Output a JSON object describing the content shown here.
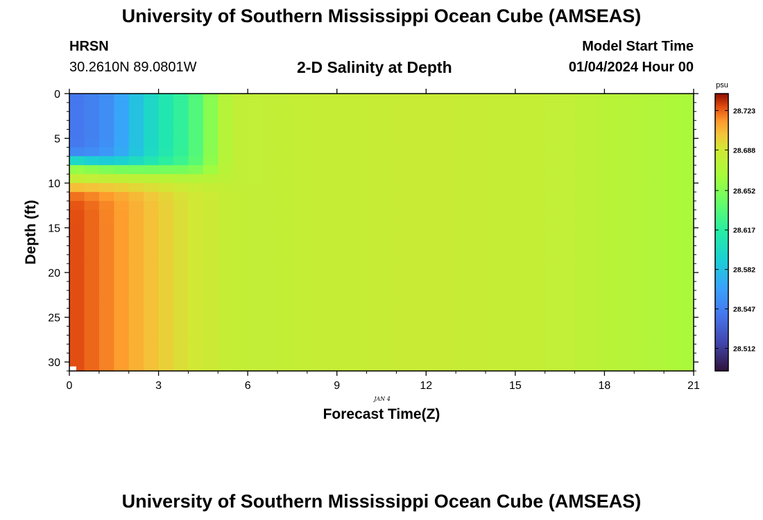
{
  "header": {
    "title": "University of Southern Mississippi Ocean Cube (AMSEAS)",
    "station": "HRSN",
    "coords": "30.2610N  89.0801W",
    "subtitle": "2-D Salinity at Depth",
    "model_start_label": "Model Start Time",
    "model_start_value": "01/04/2024 Hour 00"
  },
  "footer": {
    "title": "University of Southern Mississippi Ocean Cube (AMSEAS)"
  },
  "chart_data": {
    "type": "heatmap",
    "title": "2-D Salinity at Depth",
    "xlabel": "Forecast Time(Z)",
    "ylabel": "Depth (ft)",
    "date_label": "JAN 4",
    "xlim": [
      0,
      21
    ],
    "ylim": [
      31,
      0
    ],
    "xticks": [
      0,
      3,
      6,
      9,
      12,
      15,
      18,
      21
    ],
    "yticks": [
      0,
      5,
      10,
      15,
      20,
      25,
      30
    ],
    "x_columns_hours": [
      0.25,
      0.75,
      1.25,
      1.75,
      2.25,
      2.75,
      3.25,
      3.75,
      4.25,
      4.75,
      5.25,
      5.75,
      6.25,
      6.75,
      7.25,
      7.75,
      8.5,
      9.5,
      10.5,
      11.5,
      12.5,
      13.5,
      14.5,
      15.5,
      16.5,
      17.5,
      18.25,
      18.75,
      19.25,
      19.75,
      20.25,
      20.75
    ],
    "depth_rows_ft": [
      0.5,
      1.5,
      2.5,
      3.5,
      4.5,
      5.5,
      6.5,
      7.5,
      8.5,
      9.5,
      10.5,
      11.5,
      12.5,
      13.5,
      16,
      20.5,
      25.5,
      30
    ],
    "upper_layer_salinity_psu": [
      28.54,
      28.545,
      28.55,
      28.56,
      28.575,
      28.59,
      28.605,
      28.615,
      28.625,
      28.64,
      28.665,
      28.678
    ],
    "lower_layer_salinity_psu": [
      28.728,
      28.724,
      28.72,
      28.715,
      28.71,
      28.705,
      28.7,
      28.695,
      28.69,
      28.688,
      28.685,
      28.682
    ],
    "mixed_region_salinity_psu": [
      28.68,
      28.68,
      28.68,
      28.681,
      28.681,
      28.681,
      28.682,
      28.683,
      28.684,
      28.684,
      28.683,
      28.682,
      28.68,
      28.676,
      28.672,
      28.667
    ],
    "colorbar": {
      "unit": "psu",
      "range": [
        28.492,
        28.738
      ],
      "ticks": [
        28.512,
        28.547,
        28.582,
        28.617,
        28.652,
        28.688,
        28.723
      ]
    },
    "colors": {
      "frame": "#000000",
      "masked_cell": "#ffffff"
    }
  }
}
